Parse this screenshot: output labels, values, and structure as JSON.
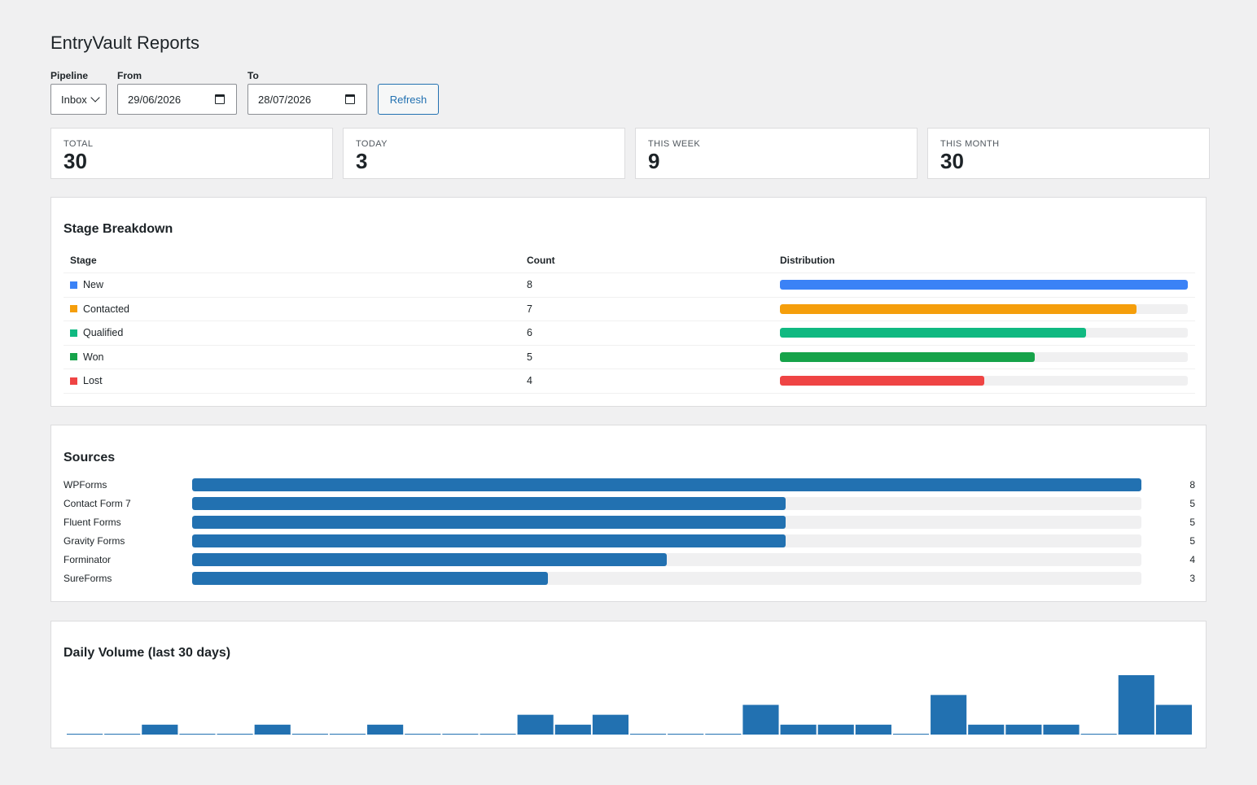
{
  "page": {
    "title": "EntryVault Reports"
  },
  "filters": {
    "pipeline_label": "Pipeline",
    "pipeline_value": "Inbox",
    "from_label": "From",
    "from_value": "29/06/2026",
    "to_label": "To",
    "to_value": "28/07/2026",
    "refresh_label": "Refresh"
  },
  "stats": [
    {
      "label": "TOTAL",
      "value": "30"
    },
    {
      "label": "TODAY",
      "value": "3"
    },
    {
      "label": "THIS WEEK",
      "value": "9"
    },
    {
      "label": "THIS MONTH",
      "value": "30"
    }
  ],
  "stages": {
    "title": "Stage Breakdown",
    "headers": {
      "stage": "Stage",
      "count": "Count",
      "distribution": "Distribution"
    },
    "max": 8,
    "rows": [
      {
        "name": "New",
        "count": "8",
        "value": 8,
        "color": "#3b82f6"
      },
      {
        "name": "Contacted",
        "count": "7",
        "value": 7,
        "color": "#f59e0b"
      },
      {
        "name": "Qualified",
        "count": "6",
        "value": 6,
        "color": "#10b981"
      },
      {
        "name": "Won",
        "count": "5",
        "value": 5,
        "color": "#16a34a"
      },
      {
        "name": "Lost",
        "count": "4",
        "value": 4,
        "color": "#ef4444"
      }
    ]
  },
  "sources": {
    "title": "Sources",
    "max": 8,
    "color": "#2271b1",
    "rows": [
      {
        "name": "WPForms",
        "count": "8",
        "value": 8
      },
      {
        "name": "Contact Form 7",
        "count": "5",
        "value": 5
      },
      {
        "name": "Fluent Forms",
        "count": "5",
        "value": 5
      },
      {
        "name": "Gravity Forms",
        "count": "5",
        "value": 5
      },
      {
        "name": "Forminator",
        "count": "4",
        "value": 4
      },
      {
        "name": "SureForms",
        "count": "3",
        "value": 3
      }
    ]
  },
  "volume": {
    "title": "Daily Volume (last 30 days)",
    "chart_data": {
      "type": "bar",
      "title": "Daily Volume (last 30 days)",
      "color": "#2271b1",
      "ylim": [
        0,
        6
      ],
      "values": [
        0,
        0,
        1,
        0,
        0,
        1,
        0,
        0,
        1,
        0,
        0,
        0,
        2,
        1,
        2,
        0,
        0,
        0,
        3,
        1,
        1,
        1,
        0,
        4,
        1,
        1,
        1,
        0,
        6,
        3
      ]
    }
  }
}
